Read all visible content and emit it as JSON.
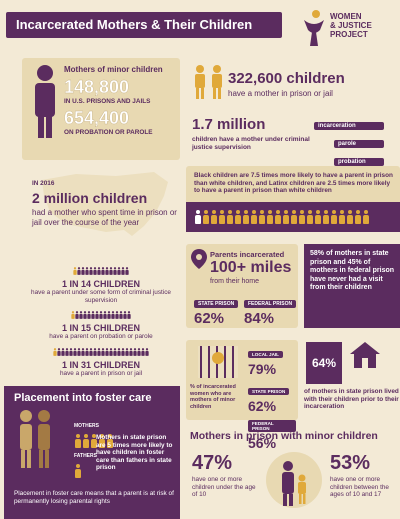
{
  "header": {
    "title": "Incarcerated Mothers & Their Children",
    "logo_line1": "WOMEN",
    "logo_line2": "& JUSTICE",
    "logo_line3": "PROJECT"
  },
  "mothers_box": {
    "heading": "Mothers of minor children",
    "prison_number": "148,800",
    "prison_label": "IN U.S. PRISONS AND JAILS",
    "probation_number": "654,400",
    "probation_label": "ON PROBATION OR PAROLE"
  },
  "children_box": {
    "number": "322,600 children",
    "line": "have a mother in prison or jail"
  },
  "supervision_box": {
    "number": "1.7 million",
    "line": "children have a mother under criminal justice supervision",
    "tags": [
      "incarceration",
      "parole",
      "probation"
    ]
  },
  "year_box": {
    "year": "IN 2016",
    "number": "2 million children",
    "line": "had a mother who spent time in prison or jail over the course of the year"
  },
  "race_box": {
    "text": "Black children are 7.5 times more likely to have a parent in prison than white children, and Latinx children are 2.5 times more likely to have a parent in prison than white children"
  },
  "ratios": [
    {
      "label": "1 IN 14 CHILDREN",
      "line": "have a parent under some form of criminal justice supervision"
    },
    {
      "label": "1 IN 15 CHILDREN",
      "line": "have a parent on probation or parole"
    },
    {
      "label": "1 IN 31 CHILDREN",
      "line": "have a parent in prison or jail"
    }
  ],
  "distance_box": {
    "heading": "Parents incarcerated",
    "number": "100+ miles",
    "line": "from their home",
    "state_label": "STATE PRISON",
    "state_value": "62%",
    "federal_label": "FEDERAL PRISON",
    "federal_value": "84%",
    "state_fraction": 0.62,
    "federal_fraction": 0.84
  },
  "visit_box": {
    "text": "58% of mothers in state prison and 45% of mothers in federal prison have never had a visit from their children"
  },
  "facility_box": {
    "caption": "% of incarcerated women who are mothers of minor children",
    "rows": [
      {
        "label": "LOCAL JAIL",
        "value": "79%"
      },
      {
        "label": "STATE PRISON",
        "value": "62%"
      },
      {
        "label": "FEDERAL PRISON",
        "value": "56%"
      }
    ]
  },
  "lived_box": {
    "value": "64%",
    "line": "of mothers in state prison lived with their children prior to their incarceration"
  },
  "foster_box": {
    "heading": "Placement into foster care",
    "mothers_tag": "MOTHERS",
    "fathers_tag": "FATHERS",
    "line": "Mothers in state prison are 5 times more likely to have children in foster care than fathers in state prison",
    "footer": "Placement in foster care means that a parent is at risk of permanently losing parental rights"
  },
  "minor_box": {
    "heading": "Mothers in prison with minor children",
    "left_value": "47%",
    "left_line": "have one or more children under the age of 10",
    "right_value": "53%",
    "right_line": "have one or more children between the ages of 10 and 17"
  },
  "colors": {
    "purple": "#5b2c5f",
    "gold": "#e0a93a",
    "cream": "#f3ead6",
    "tan": "#e8d9b2"
  }
}
